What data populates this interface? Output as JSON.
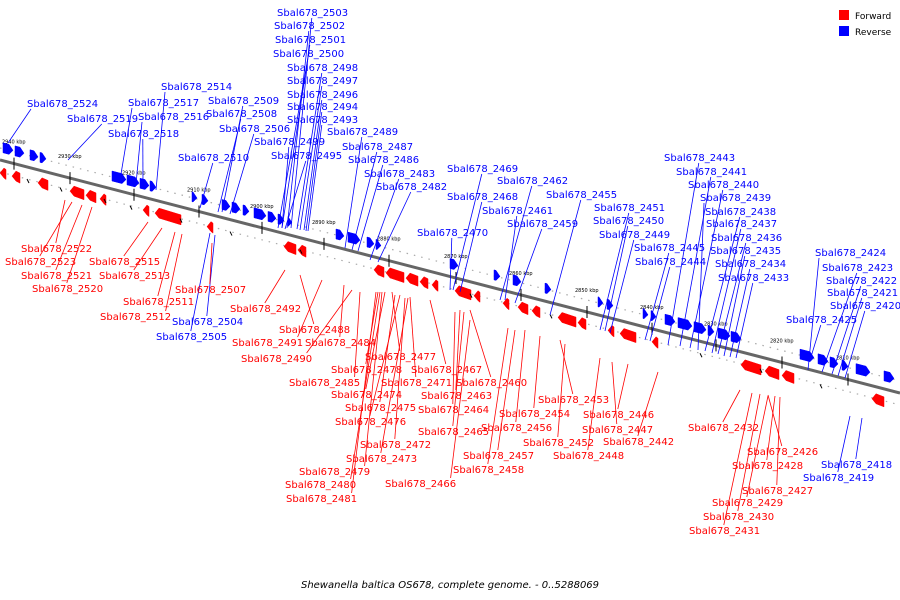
{
  "legend": {
    "forward_label": "Forward",
    "reverse_label": "Reverse",
    "forward_color": "#ff0000",
    "reverse_color": "#0000ff"
  },
  "caption": "Shewanella baltica OS678, complete genome. - 0..5288069",
  "ticks": [
    "2940 kbp",
    "2930 kbp",
    "2920 kbp",
    "2910 kbp",
    "2900 kbp",
    "2890 kbp",
    "2880 kbp",
    "2870 kbp",
    "2860 kbp",
    "2850 kbp",
    "2840 kbp",
    "2830 kbp",
    "2820 kbp",
    "2810 kbp"
  ],
  "genes_reverse": [
    "Sbal678_2503",
    "Sbal678_2502",
    "Sbal678_2501",
    "Sbal678_2500",
    "Sbal678_2498",
    "Sbal678_2497",
    "Sbal678_2496",
    "Sbal678_2494",
    "Sbal678_2493",
    "Sbal678_2514",
    "Sbal678_2509",
    "Sbal678_2508",
    "Sbal678_2506",
    "Sbal678_2499",
    "Sbal678_2495",
    "Sbal678_2489",
    "Sbal678_2487",
    "Sbal678_2486",
    "Sbal678_2483",
    "Sbal678_2482",
    "Sbal678_2524",
    "Sbal678_2519",
    "Sbal678_2517",
    "Sbal678_2516",
    "Sbal678_2518",
    "Sbal678_2510",
    "Sbal678_2469",
    "Sbal678_2468",
    "Sbal678_2462",
    "Sbal678_2461",
    "Sbal678_2459",
    "Sbal678_2455",
    "Sbal678_2470",
    "Sbal678_2451",
    "Sbal678_2450",
    "Sbal678_2449",
    "Sbal678_2445",
    "Sbal678_2444",
    "Sbal678_2443",
    "Sbal678_2441",
    "Sbal678_2440",
    "Sbal678_2439",
    "Sbal678_2438",
    "Sbal678_2437",
    "Sbal678_2436",
    "Sbal678_2435",
    "Sbal678_2434",
    "Sbal678_2433",
    "Sbal678_2424",
    "Sbal678_2423",
    "Sbal678_2422",
    "Sbal678_2421",
    "Sbal678_2420",
    "Sbal678_2425",
    "Sbal678_2504",
    "Sbal678_2505",
    "Sbal678_2418",
    "Sbal678_2419"
  ],
  "genes_forward": [
    "Sbal678_2522",
    "Sbal678_2523",
    "Sbal678_2521",
    "Sbal678_2520",
    "Sbal678_2515",
    "Sbal678_2513",
    "Sbal678_2511",
    "Sbal678_2512",
    "Sbal678_2507",
    "Sbal678_2492",
    "Sbal678_2488",
    "Sbal678_2491",
    "Sbal678_2484",
    "Sbal678_2490",
    "Sbal678_2477",
    "Sbal678_2485",
    "Sbal678_2478",
    "Sbal678_2467",
    "Sbal678_2471",
    "Sbal678_2460",
    "Sbal678_2474",
    "Sbal678_2463",
    "Sbal678_2475",
    "Sbal678_2464",
    "Sbal678_2476",
    "Sbal678_2465",
    "Sbal678_2472",
    "Sbal678_2473",
    "Sbal678_2479",
    "Sbal678_2480",
    "Sbal678_2481",
    "Sbal678_2466",
    "Sbal678_2453",
    "Sbal678_2454",
    "Sbal678_2456",
    "Sbal678_2452",
    "Sbal678_2457",
    "Sbal678_2458",
    "Sbal678_2448",
    "Sbal678_2447",
    "Sbal678_2446",
    "Sbal678_2442",
    "Sbal678_2432",
    "Sbal678_2426",
    "Sbal678_2428",
    "Sbal678_2427",
    "Sbal678_2429",
    "Sbal678_2430",
    "Sbal678_2431"
  ]
}
